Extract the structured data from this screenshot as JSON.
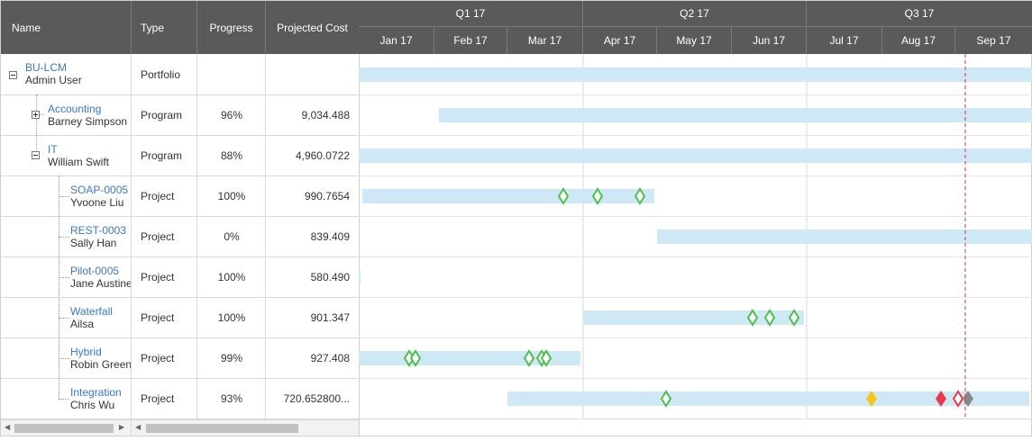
{
  "columns": {
    "name": "Name",
    "type": "Type",
    "progress": "Progress",
    "cost": "Projected Cost"
  },
  "timeline": {
    "quarters": [
      "Q1 17",
      "Q2 17",
      "Q3 17"
    ],
    "months": [
      "Jan 17",
      "Feb 17",
      "Mar 17",
      "Apr 17",
      "May 17",
      "Jun 17",
      "Jul 17",
      "Aug 17",
      "Sep 17"
    ],
    "today_line": "Sep 17",
    "colors": {
      "bar": "#cfe8f5",
      "milestone_done": "#4dbf4d",
      "milestone_warning": "#f5c518",
      "milestone_late": "#e8384a",
      "milestone_grey": "#888888",
      "today": "#d9304a"
    }
  },
  "rows": [
    {
      "name": "BU-LCM",
      "owner": "Admin User",
      "type": "Portfolio",
      "progress": "",
      "cost": "",
      "toggle": "minus"
    },
    {
      "name": "Accounting",
      "owner": "Barney Simpson",
      "type": "Program",
      "progress": "96%",
      "cost": "9,034.488",
      "toggle": "plus"
    },
    {
      "name": "IT",
      "owner": "William Swift",
      "type": "Program",
      "progress": "88%",
      "cost": "4,960.0722",
      "toggle": "minus"
    },
    {
      "name": "SOAP-0005",
      "owner": "Yvoone Liu",
      "type": "Project",
      "progress": "100%",
      "cost": "990.7654"
    },
    {
      "name": "REST-0003",
      "owner": "Sally Han",
      "type": "Project",
      "progress": "0%",
      "cost": "839.409"
    },
    {
      "name": "Pilot-0005",
      "owner": "Jane Austine",
      "type": "Project",
      "progress": "100%",
      "cost": "580.490"
    },
    {
      "name": "Waterfall",
      "owner": "Ailsa",
      "type": "Project",
      "progress": "100%",
      "cost": "901.347"
    },
    {
      "name": "Hybrid",
      "owner": "Robin Green",
      "type": "Project",
      "progress": "99%",
      "cost": "927.408"
    },
    {
      "name": "Integration",
      "owner": "Chris Wu",
      "type": "Project",
      "progress": "93%",
      "cost": "720.652800..."
    }
  ]
}
